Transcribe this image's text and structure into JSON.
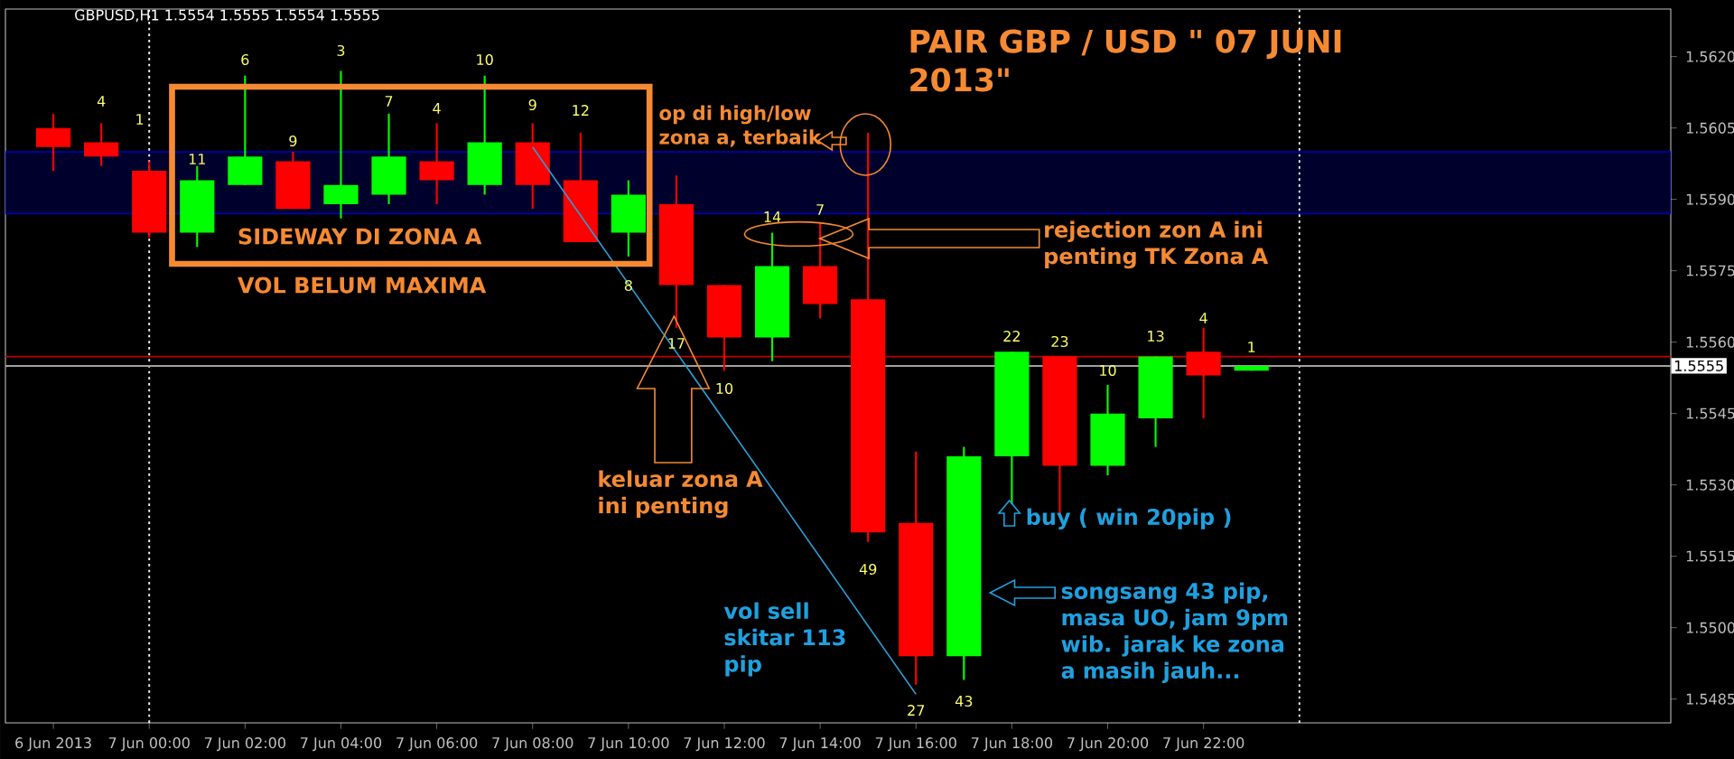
{
  "chart_data": {
    "type": "candlestick",
    "title": "PAIR GBP / USD \" 07 JUNI 2013\"",
    "x": [
      "2013-06-06T22:00",
      "2013-06-06T23:00",
      "2013-06-07T00:00",
      "2013-06-07T01:00",
      "2013-06-07T02:00",
      "2013-06-07T03:00",
      "2013-06-07T04:00",
      "2013-06-07T05:00",
      "2013-06-07T06:00",
      "2013-06-07T07:00",
      "2013-06-07T08:00",
      "2013-06-07T09:00",
      "2013-06-07T10:00",
      "2013-06-07T11:00",
      "2013-06-07T12:00",
      "2013-06-07T13:00",
      "2013-06-07T14:00",
      "2013-06-07T15:00",
      "2013-06-07T16:00",
      "2013-06-07T17:00",
      "2013-06-07T18:00",
      "2013-06-07T19:00",
      "2013-06-07T20:00",
      "2013-06-07T21:00",
      "2013-06-07T22:00",
      "2013-06-07T23:00"
    ],
    "ohlc": [
      [
        1.5605,
        1.5608,
        1.5596,
        1.5601
      ],
      [
        1.5602,
        1.5606,
        1.5597,
        1.5599
      ],
      [
        1.5596,
        1.5598,
        1.5582,
        1.5583
      ],
      [
        1.5583,
        1.5597,
        1.558,
        1.5594
      ],
      [
        1.5593,
        1.5616,
        1.5593,
        1.5599
      ],
      [
        1.5598,
        1.56,
        1.5588,
        1.5588
      ],
      [
        1.5589,
        1.5617,
        1.5586,
        1.5593
      ],
      [
        1.5591,
        1.5608,
        1.5589,
        1.5599
      ],
      [
        1.5598,
        1.5606,
        1.5589,
        1.5594
      ],
      [
        1.5593,
        1.5616,
        1.5591,
        1.5602
      ],
      [
        1.5602,
        1.5606,
        1.5588,
        1.5593
      ],
      [
        1.5594,
        1.5604,
        1.5581,
        1.5581
      ],
      [
        1.5583,
        1.5594,
        1.5578,
        1.5591
      ],
      [
        1.5589,
        1.5595,
        1.5563,
        1.5572
      ],
      [
        1.5572,
        1.5572,
        1.5554,
        1.5561
      ],
      [
        1.5561,
        1.5583,
        1.5556,
        1.5576
      ],
      [
        1.5576,
        1.5585,
        1.5565,
        1.5568
      ],
      [
        1.5569,
        1.5604,
        1.5518,
        1.552
      ],
      [
        1.5522,
        1.5537,
        1.5488,
        1.5494
      ],
      [
        1.5494,
        1.5538,
        1.5489,
        1.5536
      ],
      [
        1.5536,
        1.5558,
        1.5526,
        1.5558
      ],
      [
        1.5557,
        1.5557,
        1.5524,
        1.5534
      ],
      [
        1.5534,
        1.5551,
        1.5532,
        1.5545
      ],
      [
        1.5544,
        1.5557,
        1.5538,
        1.5557
      ],
      [
        1.5558,
        1.5563,
        1.5544,
        1.5553
      ],
      [
        1.5554,
        1.5555,
        1.5554,
        1.5555
      ]
    ],
    "colors": [
      "#ff0000",
      "#ff0000",
      "#ff0000",
      "#00ff00",
      "#00ff00",
      "#ff0000",
      "#00ff00",
      "#00ff00",
      "#ff0000",
      "#00ff00",
      "#ff0000",
      "#ff0000",
      "#00ff00",
      "#ff0000",
      "#ff0000",
      "#00ff00",
      "#ff0000",
      "#ff0000",
      "#ff0000",
      "#00ff00",
      "#00ff00",
      "#ff0000",
      "#00ff00",
      "#00ff00",
      "#ff0000",
      "#00ff00"
    ],
    "series": [
      {
        "type": "line",
        "x": [
          "2013-06-07T08:00",
          "2013-06-07T16:00"
        ],
        "values": [
          1.5601,
          1.5486
        ],
        "color": "#2a9fd6"
      }
    ],
    "xlim": [
      "2013-06-06T21:00",
      "2013-06-08T07:45"
    ],
    "ylim": [
      1.548,
      1.563
    ],
    "xticks": [
      {
        "value": "2013-06-06T22:00",
        "label": "6 Jun 2013"
      },
      {
        "value": "2013-06-07T00:00",
        "label": "7 Jun 00:00"
      },
      {
        "value": "2013-06-07T02:00",
        "label": "7 Jun 02:00"
      },
      {
        "value": "2013-06-07T04:00",
        "label": "7 Jun 04:00"
      },
      {
        "value": "2013-06-07T06:00",
        "label": "7 Jun 06:00"
      },
      {
        "value": "2013-06-07T08:00",
        "label": "7 Jun 08:00"
      },
      {
        "value": "2013-06-07T10:00",
        "label": "7 Jun 10:00"
      },
      {
        "value": "2013-06-07T12:00",
        "label": "7 Jun 12:00"
      },
      {
        "value": "2013-06-07T14:00",
        "label": "7 Jun 14:00"
      },
      {
        "value": "2013-06-07T16:00",
        "label": "7 Jun 16:00"
      },
      {
        "value": "2013-06-07T18:00",
        "label": "7 Jun 18:00"
      },
      {
        "value": "2013-06-07T20:00",
        "label": "7 Jun 20:00"
      },
      {
        "value": "2013-06-07T22:00",
        "label": "7 Jun 22:00"
      }
    ],
    "yticks": [
      {
        "value": 1.5485,
        "label": "1.5485"
      },
      {
        "value": 1.55,
        "label": "1.5500"
      },
      {
        "value": 1.5515,
        "label": "1.5515"
      },
      {
        "value": 1.553,
        "label": "1.5530"
      },
      {
        "value": 1.5545,
        "label": "1.5545"
      },
      {
        "value": 1.556,
        "label": "1.5560"
      },
      {
        "value": 1.5575,
        "label": "1.5575"
      },
      {
        "value": 1.559,
        "label": "1.5590"
      },
      {
        "value": 1.5605,
        "label": "1.5605"
      },
      {
        "value": 1.562,
        "label": "1.5620"
      }
    ],
    "ref_lines": [
      {
        "axis": "x",
        "value": "2013-06-07T00:00",
        "color": "#ffffff",
        "line_style": "dotted"
      },
      {
        "axis": "x",
        "value": "2013-06-08T00:00",
        "color": "#ffffff",
        "line_style": "dotted"
      },
      {
        "axis": "y",
        "value": 1.5557,
        "color": "#c00000"
      },
      {
        "axis": "y",
        "value": 1.5555,
        "label": "1.5555",
        "color": "#a0a0a0"
      }
    ],
    "bands": [
      {
        "axis": "y",
        "from": 1.5587,
        "to": 1.56,
        "color": "#0000c8"
      }
    ],
    "annotations": [
      "GBPUSD,H1 1.5554 1.5555 1.5554 1.5555",
      "SIDEWAY DI ZONA A",
      "VOL BELUM MAXIMA",
      "op di high/low zona a, terbaik",
      "rejection zon A ini penting TK Zona A",
      "keluar zona A ini penting",
      "vol sell skitar 113 pip",
      "buy ( win 20pip )",
      "songsang 43 pip, masa UO, jam 9pm wib. jarak ke zona a masih jauh...",
      "4",
      "1",
      "11",
      "6",
      "9",
      "3",
      "7",
      "4",
      "10",
      "9",
      "12",
      "8",
      "17",
      "10",
      "14",
      "7",
      "49",
      "27",
      "43",
      "22",
      "23",
      "10",
      "13",
      "4",
      "1"
    ]
  }
}
